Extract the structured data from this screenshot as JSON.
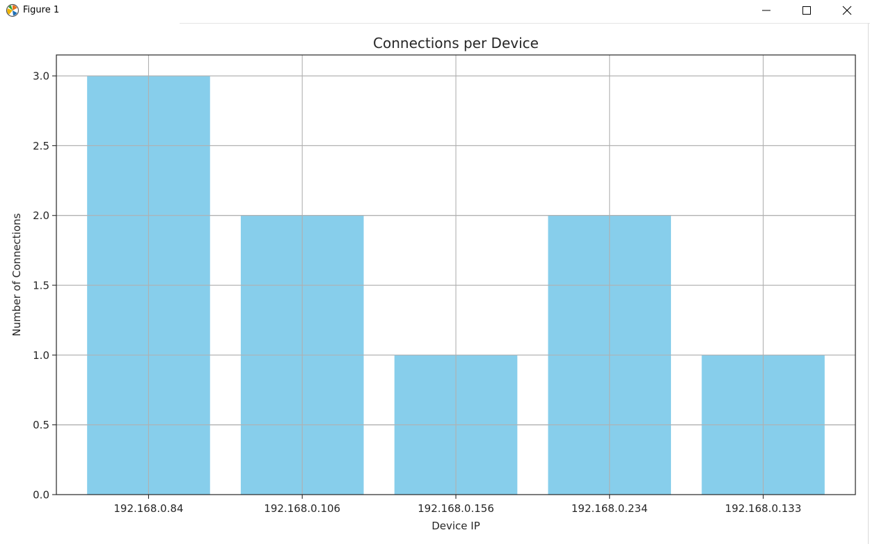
{
  "window": {
    "title": "Figure 1",
    "icons": {
      "app": "matplotlib-icon",
      "minimize": "minimize-icon",
      "maximize": "maximize-icon",
      "close": "close-icon"
    }
  },
  "colors": {
    "bar": "#87ceeb",
    "grid": "#b0b0b0",
    "axis": "#262626"
  },
  "chart_data": {
    "type": "bar",
    "title": "Connections per Device",
    "xlabel": "Device IP",
    "ylabel": "Number of Connections",
    "categories": [
      "192.168.0.84",
      "192.168.0.106",
      "192.168.0.156",
      "192.168.0.234",
      "192.168.0.133"
    ],
    "values": [
      3,
      2,
      1,
      2,
      1
    ],
    "ylim": [
      0,
      3.15
    ],
    "yticks": [
      "0.0",
      "0.5",
      "1.0",
      "1.5",
      "2.0",
      "2.5",
      "3.0"
    ],
    "grid": true,
    "legend": "none"
  }
}
